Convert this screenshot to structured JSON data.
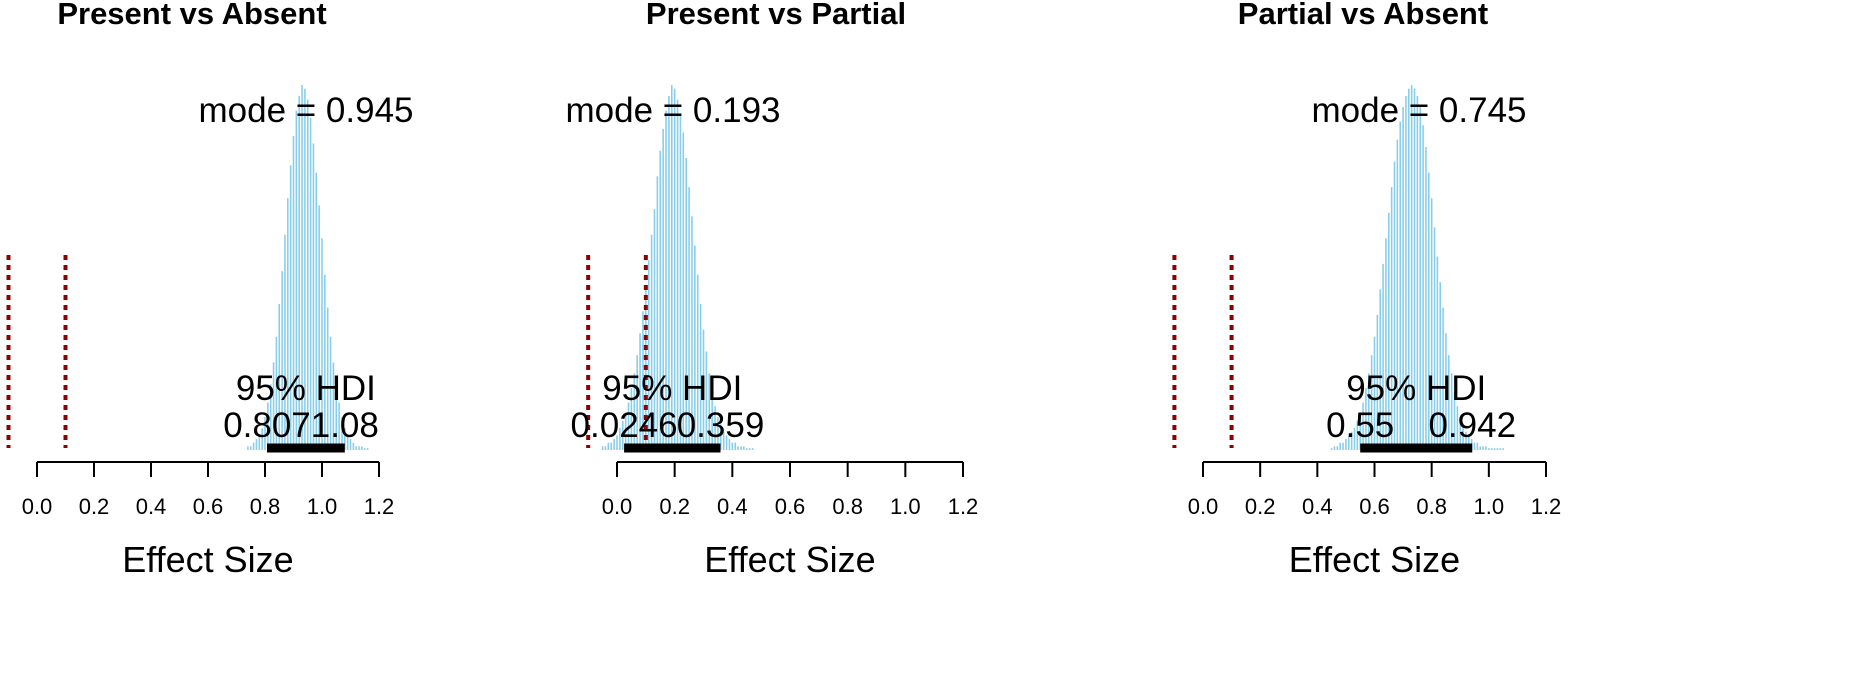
{
  "chart_data": [
    {
      "type": "bar",
      "title": "Present vs Absent",
      "xlabel": "Effect Size",
      "xlim": [
        -0.05,
        1.25
      ],
      "x_ticks": [
        "0.0",
        "0.2",
        "0.4",
        "0.6",
        "0.8",
        "1.0",
        "1.2"
      ],
      "mode_label": "mode = 0.945",
      "mode": 0.945,
      "hdi_label": "95% HDI",
      "hdi_low": "0.807",
      "hdi_high": "1.08",
      "rope": [
        -0.1,
        0.1
      ],
      "hist": {
        "bin_width": 0.01,
        "x": [
          0.74,
          0.75,
          0.76,
          0.77,
          0.78,
          0.79,
          0.8,
          0.81,
          0.82,
          0.83,
          0.84,
          0.85,
          0.86,
          0.87,
          0.88,
          0.89,
          0.9,
          0.91,
          0.92,
          0.93,
          0.94,
          0.95,
          0.96,
          0.97,
          0.98,
          0.99,
          1.0,
          1.01,
          1.02,
          1.03,
          1.04,
          1.05,
          1.06,
          1.07,
          1.08,
          1.09,
          1.1,
          1.11,
          1.12,
          1.13,
          1.14,
          1.15,
          1.16
        ],
        "values": [
          0.01,
          0.01,
          0.02,
          0.03,
          0.04,
          0.06,
          0.09,
          0.13,
          0.18,
          0.24,
          0.31,
          0.4,
          0.49,
          0.59,
          0.69,
          0.78,
          0.86,
          0.93,
          0.97,
          1.0,
          0.99,
          0.96,
          0.91,
          0.84,
          0.76,
          0.67,
          0.58,
          0.48,
          0.39,
          0.31,
          0.24,
          0.18,
          0.13,
          0.09,
          0.06,
          0.04,
          0.03,
          0.02,
          0.01,
          0.01,
          0.01,
          0.005,
          0.005
        ]
      }
    },
    {
      "type": "bar",
      "title": "Present vs Partial",
      "xlabel": "Effect Size",
      "xlim": [
        -0.05,
        1.25
      ],
      "x_ticks": [
        "0.0",
        "0.2",
        "0.4",
        "0.6",
        "0.8",
        "1.0",
        "1.2"
      ],
      "mode_label": "mode = 0.193",
      "mode": 0.193,
      "hdi_label": "95% HDI",
      "hdi_low": "0.0246",
      "hdi_high": "0.359",
      "rope": [
        -0.1,
        0.1
      ],
      "hist": {
        "bin_width": 0.01,
        "x": [
          -0.05,
          -0.04,
          -0.03,
          -0.02,
          -0.01,
          0.0,
          0.01,
          0.02,
          0.03,
          0.04,
          0.05,
          0.06,
          0.07,
          0.08,
          0.09,
          0.1,
          0.11,
          0.12,
          0.13,
          0.14,
          0.15,
          0.16,
          0.17,
          0.18,
          0.19,
          0.2,
          0.21,
          0.22,
          0.23,
          0.24,
          0.25,
          0.26,
          0.27,
          0.28,
          0.29,
          0.3,
          0.31,
          0.32,
          0.33,
          0.34,
          0.35,
          0.36,
          0.37,
          0.38,
          0.39,
          0.4,
          0.41,
          0.42,
          0.43,
          0.44,
          0.45,
          0.46,
          0.47
        ],
        "values": [
          0.01,
          0.01,
          0.02,
          0.02,
          0.03,
          0.04,
          0.06,
          0.08,
          0.1,
          0.13,
          0.17,
          0.21,
          0.26,
          0.32,
          0.38,
          0.45,
          0.52,
          0.59,
          0.66,
          0.75,
          0.82,
          0.88,
          0.93,
          0.97,
          1.0,
          0.99,
          0.96,
          0.92,
          0.87,
          0.8,
          0.72,
          0.64,
          0.56,
          0.48,
          0.4,
          0.33,
          0.27,
          0.21,
          0.16,
          0.12,
          0.09,
          0.07,
          0.05,
          0.04,
          0.03,
          0.02,
          0.02,
          0.01,
          0.01,
          0.01,
          0.005,
          0.005,
          0.005
        ]
      }
    },
    {
      "type": "bar",
      "title": "Partial vs Absent",
      "xlabel": "Effect Size",
      "xlim": [
        -0.05,
        1.25
      ],
      "x_ticks": [
        "0.0",
        "0.2",
        "0.4",
        "0.6",
        "0.8",
        "1.0",
        "1.2"
      ],
      "mode_label": "mode = 0.745",
      "mode": 0.745,
      "hdi_label": "95% HDI",
      "hdi_low": "0.55",
      "hdi_high": "0.942",
      "rope": [
        -0.1,
        0.1
      ],
      "hist": {
        "bin_width": 0.01,
        "x": [
          0.45,
          0.46,
          0.47,
          0.48,
          0.49,
          0.5,
          0.51,
          0.52,
          0.53,
          0.54,
          0.55,
          0.56,
          0.57,
          0.58,
          0.59,
          0.6,
          0.61,
          0.62,
          0.63,
          0.64,
          0.65,
          0.66,
          0.67,
          0.68,
          0.69,
          0.7,
          0.71,
          0.72,
          0.73,
          0.74,
          0.75,
          0.76,
          0.77,
          0.78,
          0.79,
          0.8,
          0.81,
          0.82,
          0.83,
          0.84,
          0.85,
          0.86,
          0.87,
          0.88,
          0.89,
          0.9,
          0.91,
          0.92,
          0.93,
          0.94,
          0.95,
          0.96,
          0.97,
          0.98,
          0.99,
          1.0,
          1.01,
          1.02,
          1.03,
          1.04,
          1.05
        ],
        "values": [
          0.005,
          0.01,
          0.01,
          0.02,
          0.02,
          0.03,
          0.04,
          0.05,
          0.06,
          0.08,
          0.1,
          0.13,
          0.17,
          0.21,
          0.26,
          0.31,
          0.37,
          0.44,
          0.51,
          0.58,
          0.65,
          0.72,
          0.79,
          0.85,
          0.9,
          0.94,
          0.97,
          0.99,
          1.0,
          0.99,
          0.97,
          0.94,
          0.89,
          0.83,
          0.76,
          0.69,
          0.61,
          0.53,
          0.46,
          0.39,
          0.32,
          0.26,
          0.21,
          0.16,
          0.12,
          0.09,
          0.07,
          0.05,
          0.04,
          0.03,
          0.02,
          0.02,
          0.01,
          0.01,
          0.01,
          0.005,
          0.005,
          0.005,
          0.005,
          0.005,
          0.005
        ]
      }
    }
  ],
  "colors": {
    "bars": "#87CEEB",
    "rope": "#8B0000",
    "hdi": "#000000",
    "text": "#000000"
  }
}
